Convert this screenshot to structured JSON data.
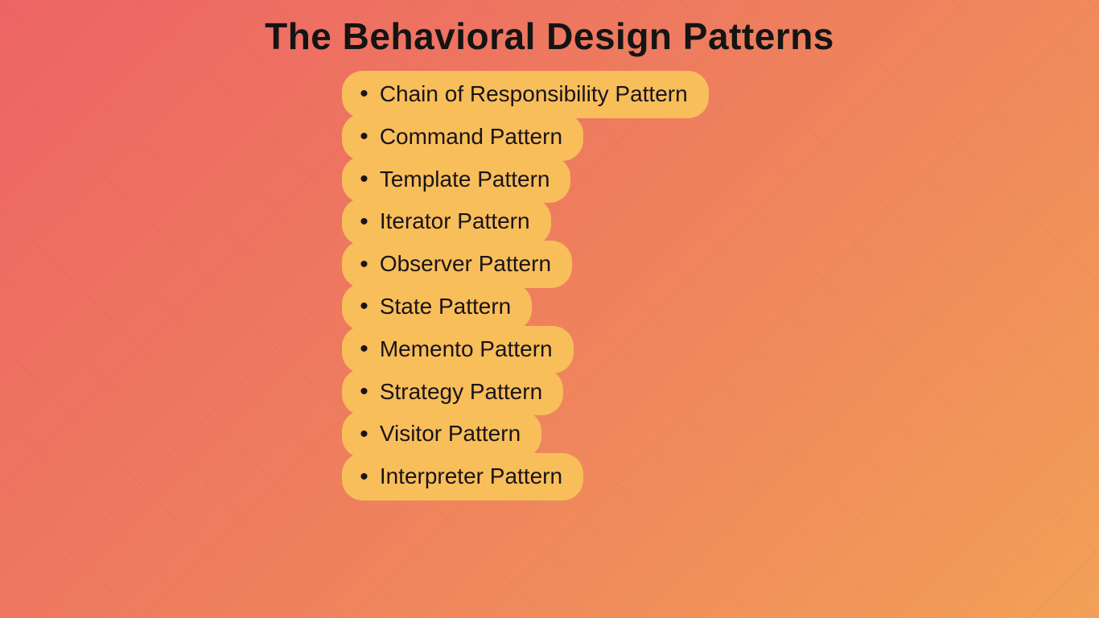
{
  "title": "The Behavioral Design Patterns",
  "title_color": "#141414",
  "title_fontsize": 46,
  "title_fontweight": 800,
  "gradient_start": "#ed6565",
  "gradient_mid": "#ee7a5f",
  "gradient_end": "#f2a057",
  "pill_bg": "#f7be5a",
  "pill_text_color": "#1a1319",
  "pill_fontsize": 28,
  "pill_radius": 26,
  "bullet_char": "•",
  "items": [
    "Chain of Responsibility Pattern",
    "Command Pattern",
    "Template Pattern",
    "Iterator Pattern",
    "Observer Pattern",
    "State Pattern",
    "Memento Pattern",
    "Strategy Pattern",
    "Visitor Pattern",
    "Interpreter Pattern"
  ]
}
